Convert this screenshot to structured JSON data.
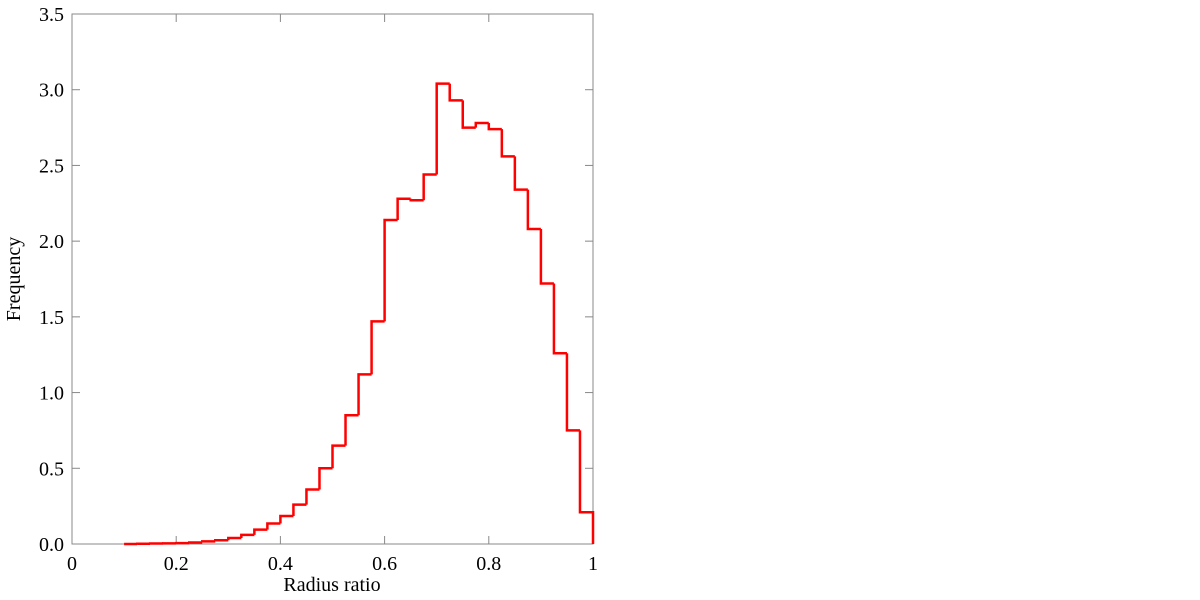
{
  "chart_data": {
    "type": "histogram",
    "x_label": "Radius ratio",
    "y_label": "Frequency",
    "color": "#ff0000",
    "bins": [
      0.1,
      0.125,
      0.15,
      0.175,
      0.2,
      0.225,
      0.25,
      0.275,
      0.3,
      0.325,
      0.35,
      0.375,
      0.4,
      0.425,
      0.45,
      0.475,
      0.5,
      0.525,
      0.55,
      0.575,
      0.6,
      0.625,
      0.65,
      0.675,
      0.7,
      0.725,
      0.75,
      0.775,
      0.8,
      0.825,
      0.85,
      0.875,
      0.9,
      0.925,
      0.95,
      0.975,
      1
    ],
    "counts": [
      0.0,
      0.002,
      0.003,
      0.004,
      0.006,
      0.01,
      0.017,
      0.025,
      0.04,
      0.06,
      0.095,
      0.135,
      0.185,
      0.26,
      0.36,
      0.5,
      0.65,
      0.85,
      1.12,
      1.47,
      2.14,
      2.28,
      2.27,
      2.44,
      3.04,
      2.93,
      2.75,
      2.78,
      2.74,
      2.56,
      2.34,
      2.08,
      1.72,
      1.26,
      0.75,
      0.21
    ],
    "xlim": [
      0,
      1
    ],
    "xticks": [
      0,
      0.2,
      0.4,
      0.6,
      0.8,
      1
    ],
    "ylim": [
      0,
      3.5
    ],
    "yticks": [
      {
        "value": 0,
        "label": "0.0"
      },
      0.5,
      {
        "value": 1,
        "label": "1.0"
      },
      1.5,
      {
        "value": 2,
        "label": "2.0"
      },
      2.5,
      {
        "value": 3,
        "label": "3.0"
      },
      3.5
    ]
  }
}
